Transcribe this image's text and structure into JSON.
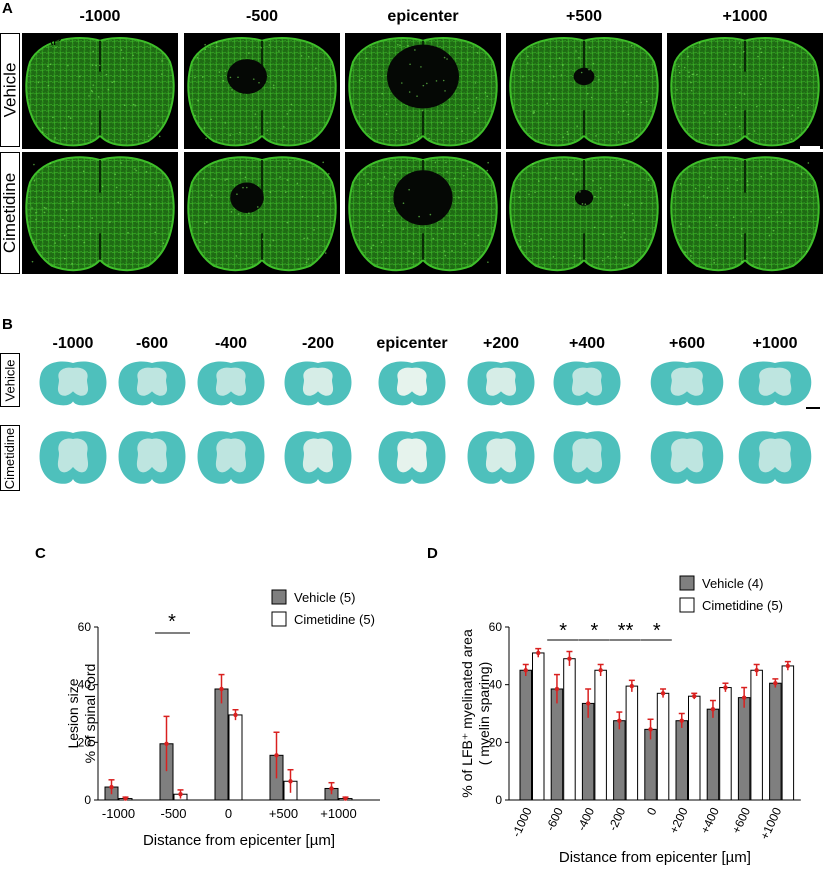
{
  "panel_a": {
    "letter": "A",
    "columns": [
      "-1000",
      "-500",
      "epicenter",
      "+500",
      "+1000"
    ],
    "rows": [
      "Vehicle",
      "Cimetidine"
    ],
    "stain_label": "GFAP",
    "stain_color": "#3fbf2a"
  },
  "panel_b": {
    "letter": "B",
    "columns": [
      "-1000",
      "-600",
      "-400",
      "-200",
      "epicenter",
      "+200",
      "+400",
      "+600",
      "+1000"
    ],
    "rows": [
      "Vehicle",
      "Cimetidine"
    ],
    "stain_color": "#2fb5b0"
  },
  "panel_c": {
    "letter": "C",
    "legend": [
      "Vehicle (5)",
      "Cimetidine (5)"
    ],
    "significance": "*"
  },
  "panel_d": {
    "letter": "D",
    "legend": [
      "Vehicle (4)",
      "Cimetidine (5)"
    ],
    "significance": [
      "*",
      "*",
      "**",
      "*"
    ]
  },
  "colors": {
    "vehicle_bar": "#7f7f7f",
    "cimetidine_bar": "#ffffff",
    "error_bar": "#d9201f"
  },
  "chart_data": [
    {
      "type": "bar",
      "panel": "C",
      "categories": [
        "-1000",
        "-500",
        "0",
        "+500",
        "+1000"
      ],
      "series": [
        {
          "name": "Vehicle (5)",
          "values": [
            4.5,
            19.5,
            38.5,
            15.5,
            4
          ]
        },
        {
          "name": "Cimetidine (5)",
          "values": [
            0.5,
            2,
            29.5,
            6.5,
            0.5
          ]
        }
      ],
      "errors": [
        [
          2.5,
          9.5,
          5,
          8,
          2
        ],
        [
          0.5,
          1.5,
          1.8,
          4,
          0.5
        ]
      ],
      "xlabel": "Distance from epicenter [µm]",
      "ylabel": [
        "Lesion size",
        "% of spinal cord"
      ],
      "ylim": [
        0,
        60
      ],
      "yticks": [
        0,
        20,
        40,
        60
      ]
    },
    {
      "type": "bar",
      "panel": "D",
      "categories": [
        "-1000",
        "-600",
        "-400",
        "-200",
        "0",
        "+200",
        "+400",
        "+600",
        "+1000"
      ],
      "series": [
        {
          "name": "Vehicle (4)",
          "values": [
            45,
            38.5,
            33.5,
            27.5,
            24.5,
            27.5,
            31.5,
            35.5,
            40.5
          ]
        },
        {
          "name": "Cimetidine (5)",
          "values": [
            51,
            49,
            45,
            39.5,
            37,
            36,
            39,
            45,
            46.5
          ]
        }
      ],
      "errors": [
        [
          2,
          5,
          5,
          3,
          3.5,
          2.5,
          3,
          3.5,
          1.5
        ],
        [
          1.5,
          2.5,
          2,
          2,
          1.5,
          1,
          1.5,
          2,
          1.5
        ]
      ],
      "xlabel": "Distance from epicenter [µm]",
      "ylabel": [
        "% of LFB⁺ myelinated area",
        "( myelin sparing)"
      ],
      "ylim": [
        0,
        60
      ],
      "yticks": [
        0,
        20,
        40,
        60
      ]
    }
  ]
}
